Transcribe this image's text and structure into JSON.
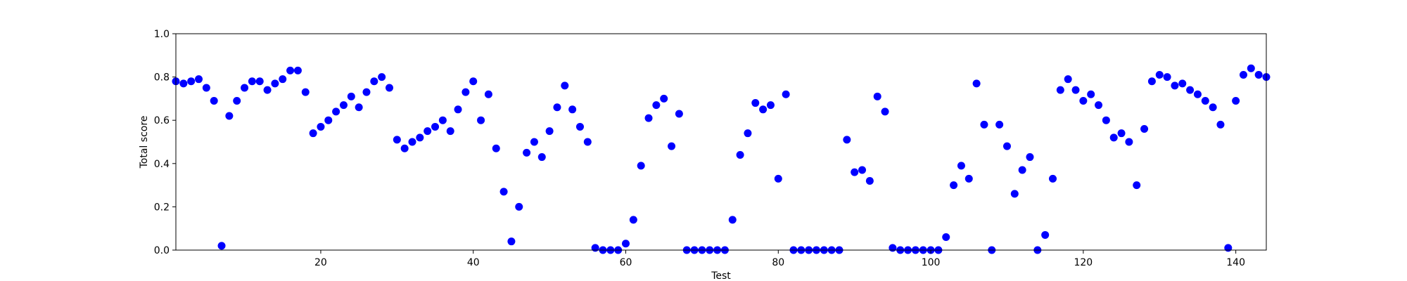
{
  "chart_data": {
    "type": "scatter",
    "title": "",
    "xlabel": "Test",
    "ylabel": "Total score",
    "xlim": [
      1,
      144
    ],
    "ylim": [
      0.0,
      1.0
    ],
    "grid": false,
    "marker_color": "#0000ff",
    "x_ticks": [
      20,
      40,
      60,
      80,
      100,
      120,
      140
    ],
    "y_ticks": [
      0.0,
      0.2,
      0.4,
      0.6,
      0.8,
      1.0
    ],
    "x_tick_labels": [
      "20",
      "40",
      "60",
      "80",
      "100",
      "120",
      "140"
    ],
    "y_tick_labels": [
      "0.0",
      "0.2",
      "0.4",
      "0.6",
      "0.8",
      "1.0"
    ],
    "series": [
      {
        "x": [
          1,
          2,
          3,
          4,
          5,
          6,
          7,
          8,
          9,
          10,
          11,
          12,
          13,
          14,
          15,
          16,
          17,
          18,
          19,
          20,
          21,
          22,
          23,
          24,
          25,
          26,
          27,
          28,
          29,
          30,
          31,
          32,
          33,
          34,
          35,
          36,
          37,
          38,
          39,
          40,
          41,
          42,
          43,
          44,
          45,
          46,
          47,
          48,
          49,
          50,
          51,
          52,
          53,
          54,
          55,
          56,
          57,
          58,
          59,
          60,
          61,
          62,
          63,
          64,
          65,
          66,
          67,
          68,
          69,
          70,
          71,
          72,
          73,
          74,
          75,
          76,
          77,
          78,
          79,
          80,
          81,
          82,
          83,
          84,
          85,
          86,
          87,
          88,
          89,
          90,
          91,
          92,
          93,
          94,
          95,
          96,
          97,
          98,
          99,
          100,
          101,
          102,
          103,
          104,
          105,
          106,
          107,
          108,
          109,
          110,
          111,
          112,
          113,
          114,
          115,
          116,
          117,
          118,
          119,
          120,
          121,
          122,
          123,
          124,
          125,
          126,
          127,
          128,
          129,
          130,
          131,
          132,
          133,
          134,
          135,
          136,
          137,
          138,
          139,
          140,
          141,
          142,
          143,
          144
        ],
        "y": [
          0.78,
          0.77,
          0.78,
          0.79,
          0.75,
          0.69,
          0.02,
          0.62,
          0.69,
          0.75,
          0.78,
          0.78,
          0.74,
          0.77,
          0.79,
          0.83,
          0.83,
          0.73,
          0.54,
          0.57,
          0.6,
          0.64,
          0.67,
          0.71,
          0.66,
          0.73,
          0.78,
          0.8,
          0.75,
          0.51,
          0.47,
          0.5,
          0.52,
          0.55,
          0.57,
          0.6,
          0.55,
          0.65,
          0.73,
          0.78,
          0.6,
          0.72,
          0.47,
          0.27,
          0.04,
          0.2,
          0.45,
          0.5,
          0.43,
          0.55,
          0.66,
          0.76,
          0.65,
          0.57,
          0.5,
          0.01,
          0.0,
          0.0,
          0.0,
          0.03,
          0.14,
          0.39,
          0.61,
          0.67,
          0.7,
          0.48,
          0.63,
          0.0,
          0.0,
          0.0,
          0.0,
          0.0,
          0.0,
          0.14,
          0.44,
          0.54,
          0.68,
          0.65,
          0.67,
          0.33,
          0.72,
          0.0,
          0.0,
          0.0,
          0.0,
          0.0,
          0.0,
          0.0,
          0.51,
          0.36,
          0.37,
          0.32,
          0.71,
          0.64,
          0.01,
          0.0,
          0.0,
          0.0,
          0.0,
          0.0,
          0.0,
          0.06,
          0.3,
          0.39,
          0.33,
          0.77,
          0.58,
          0.0,
          0.58,
          0.48,
          0.26,
          0.37,
          0.43,
          0.0,
          0.07,
          0.33,
          0.74,
          0.79,
          0.74,
          0.69,
          0.72,
          0.67,
          0.6,
          0.52,
          0.54,
          0.5,
          0.3,
          0.56,
          0.78,
          0.81,
          0.8,
          0.76,
          0.77,
          0.74,
          0.72,
          0.69,
          0.66,
          0.58,
          0.01,
          0.69,
          0.81,
          0.84,
          0.81,
          0.8
        ]
      }
    ]
  }
}
